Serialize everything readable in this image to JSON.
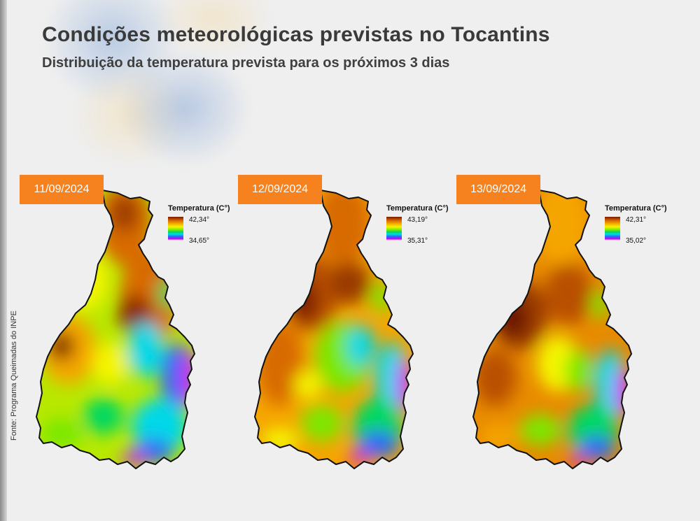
{
  "header": {
    "title": "Condições meteorológicas previstas no Tocantins",
    "subtitle": "Distribuição da temperatura prevista para os próximos 3 dias"
  },
  "source": "Fonte: Programa Queimadas do INPE",
  "legend_title": "Temperatura (C°)",
  "panels": [
    {
      "date": "11/09/2024",
      "max": "42,34°",
      "min": "34,65°"
    },
    {
      "date": "12/09/2024",
      "max": "43,19°",
      "min": "35,31°"
    },
    {
      "date": "13/09/2024",
      "max": "42,31°",
      "min": "35,02°"
    }
  ],
  "colors": {
    "badge": "#f5821f",
    "hottest": "#7a1a00",
    "hot": "#d86a00",
    "warm": "#f5a500",
    "mild": "#f5f500",
    "moderate": "#7ae800",
    "cool": "#00d8e8",
    "cooler": "#2a6af5",
    "coolest": "#c800ff"
  }
}
